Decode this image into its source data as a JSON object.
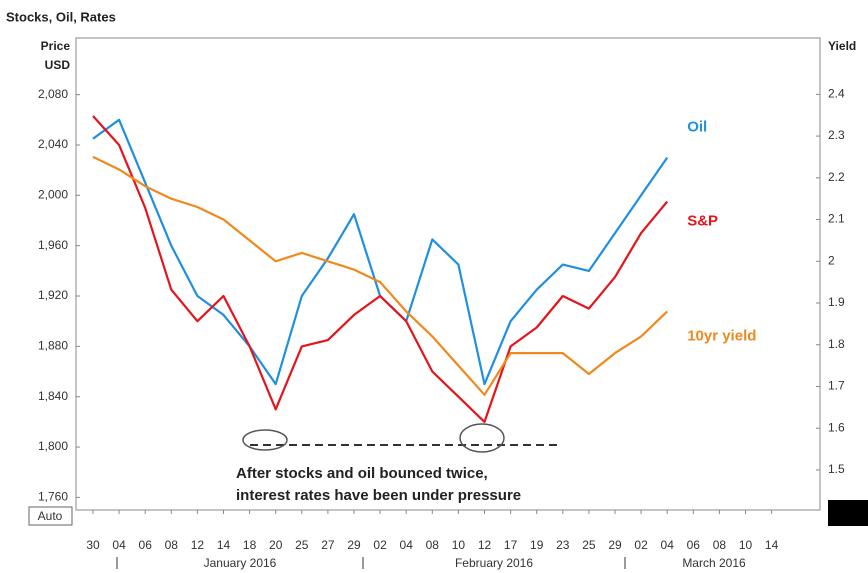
{
  "chart_data": {
    "type": "line",
    "title": "Stocks, Oil, Rates",
    "ylabel": [
      "Price",
      "USD"
    ],
    "y2label": "Yield",
    "categories": [
      "30",
      "04",
      "06",
      "08",
      "12",
      "14",
      "18",
      "20",
      "25",
      "27",
      "29",
      "02",
      "04",
      "08",
      "10",
      "12",
      "17",
      "19",
      "23",
      "25",
      "29",
      "02",
      "04",
      "06",
      "08",
      "10",
      "14"
    ],
    "months": [
      "January 2016",
      "February 2016",
      "March 2016"
    ],
    "series": [
      {
        "name": "Oil",
        "color": "#1f8fe0",
        "values": [
          2045,
          2060,
          2010,
          1960,
          1920,
          1905,
          1880,
          1850,
          1920,
          1950,
          1985,
          1920,
          1900,
          1965,
          1945,
          1850,
          1900,
          1925,
          1945,
          1940,
          1970,
          2000,
          2030,
          null,
          null,
          null,
          null
        ]
      },
      {
        "name": "S&P",
        "color": "#e5141b",
        "values": [
          2063,
          2040,
          1990,
          1925,
          1900,
          1920,
          1880,
          1830,
          1880,
          1885,
          1905,
          1920,
          1900,
          1860,
          1840,
          1820,
          1880,
          1895,
          1920,
          1910,
          1935,
          1970,
          1995,
          null,
          null,
          null,
          null
        ]
      },
      {
        "name": "10yr yield",
        "color": "#f0891d",
        "axis": "y2",
        "values": [
          2.25,
          2.22,
          2.18,
          2.15,
          2.13,
          2.1,
          2.05,
          2.0,
          2.02,
          2.0,
          1.98,
          1.95,
          1.88,
          1.82,
          1.75,
          1.68,
          1.78,
          1.78,
          1.78,
          1.73,
          1.78,
          1.82,
          1.88,
          null,
          null,
          null,
          null
        ]
      }
    ],
    "ylim": [
      1750,
      2125
    ],
    "yticks": [
      {
        "value": 1760,
        "label": "1,760"
      },
      {
        "value": 1800,
        "label": "1,800"
      },
      {
        "value": 1840,
        "label": "1,840"
      },
      {
        "value": 1880,
        "label": "1,880"
      },
      {
        "value": 1920,
        "label": "1,920"
      },
      {
        "value": 1960,
        "label": "1,960"
      },
      {
        "value": 2000,
        "label": "2,000"
      },
      {
        "value": 2040,
        "label": "2,040"
      },
      {
        "value": 2080,
        "label": "2,080"
      }
    ],
    "y2lim": [
      1.404,
      2.535
    ],
    "y2ticks": [
      1.5,
      1.6,
      1.7,
      1.8,
      1.9,
      2,
      2.1,
      2.2,
      2.3,
      2.4
    ],
    "annotation": [
      "After stocks and oil bounced twice,",
      "interest rates have been under pressure"
    ],
    "button": "Auto"
  }
}
